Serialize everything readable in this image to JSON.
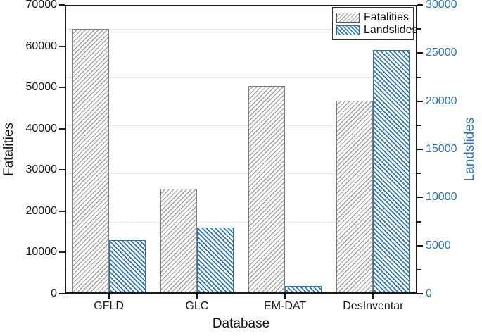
{
  "chart_data": {
    "type": "bar",
    "categories": [
      "GFLD",
      "GLC",
      "EM-DAT",
      "DesInventar"
    ],
    "series": [
      {
        "name": "Fatalities",
        "axis": "left",
        "values": [
          64200,
          25400,
          50400,
          46800
        ],
        "hatch": "forward-diagonal",
        "color": "#a3a3a3",
        "edge_color": "#7f7f7f"
      },
      {
        "name": "Landslides",
        "axis": "right",
        "values": [
          5600,
          6900,
          800,
          25300
        ],
        "hatch": "backward-diagonal",
        "color": "#2e74b5",
        "edge_color": "#2e74b5"
      }
    ],
    "title": "",
    "xlabel": "Database",
    "ylabel_left": "Fatalities",
    "ylabel_right": "Landslides",
    "ylim_left": [
      0,
      70000
    ],
    "ylim_right": [
      0,
      30000
    ],
    "yticks_left": [
      0,
      10000,
      20000,
      30000,
      40000,
      50000,
      60000,
      70000
    ],
    "yticks_right": [
      0,
      5000,
      10000,
      15000,
      20000,
      25000,
      30000
    ],
    "minor_gridlines_right": [
      2500,
      7500,
      12500,
      17500,
      22500,
      27500
    ],
    "grid": "dotted-horizontal-minor",
    "legend_position": "top-right",
    "right_axis_color": "#2e74b5",
    "left_axis_color": "#1a1a1a",
    "grid_color": "#d4d4d4"
  },
  "legend": {
    "entries": [
      {
        "label": "Fatalities"
      },
      {
        "label": "Landslides"
      }
    ]
  }
}
